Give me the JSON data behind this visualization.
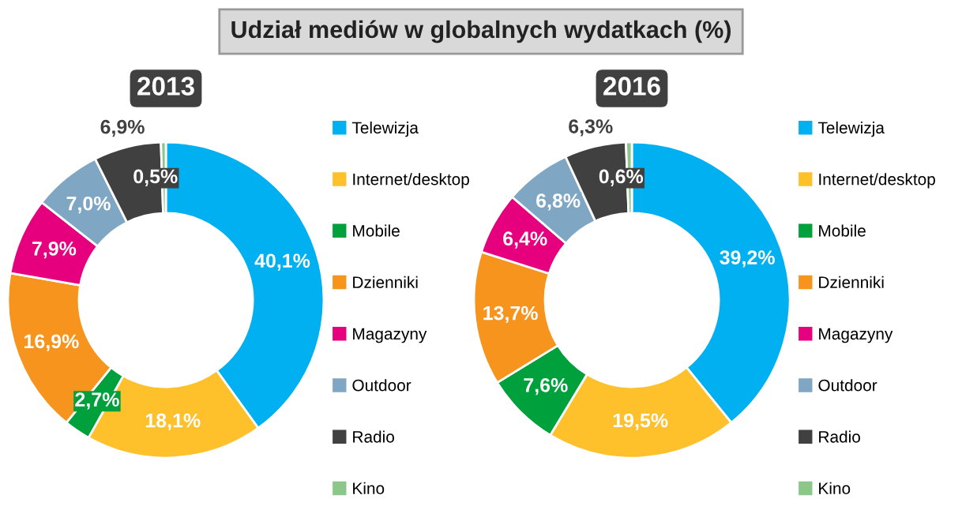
{
  "chart_data": [
    {
      "type": "donut",
      "title": "2013",
      "annotations": [
        "Udział mediów w globalnych wydatkach (%)"
      ],
      "legend": "right",
      "categories": [
        "Telewizja",
        "Internet/desktop",
        "Mobile",
        "Dzienniki",
        "Magazyny",
        "Outdoor",
        "Radio",
        "Kino"
      ],
      "values": [
        40.1,
        18.1,
        2.7,
        16.9,
        7.9,
        7.0,
        6.9,
        0.5
      ],
      "value_labels": [
        "40,1%",
        "18,1%",
        "2,7%",
        "16,9%",
        "7,9%",
        "7,0%",
        "6,9%",
        "0,5%"
      ],
      "colors": [
        "#00b0f0",
        "#ffc12b",
        "#00a03c",
        "#f7941d",
        "#e6007e",
        "#7fa7c4",
        "#404040",
        "#8cc78a"
      ]
    },
    {
      "type": "donut",
      "title": "2016",
      "legend": "right",
      "categories": [
        "Telewizja",
        "Internet/desktop",
        "Mobile",
        "Dzienniki",
        "Magazyny",
        "Outdoor",
        "Radio",
        "Kino"
      ],
      "values": [
        39.2,
        19.5,
        7.6,
        13.7,
        6.4,
        6.8,
        6.3,
        0.6
      ],
      "value_labels": [
        "39,2%",
        "19,5%",
        "7,6%",
        "13,7%",
        "6,4%",
        "6,8%",
        "6,3%",
        "0,6%"
      ],
      "colors": [
        "#00b0f0",
        "#ffc12b",
        "#00a03c",
        "#f7941d",
        "#e6007e",
        "#7fa7c4",
        "#404040",
        "#8cc78a"
      ]
    }
  ]
}
